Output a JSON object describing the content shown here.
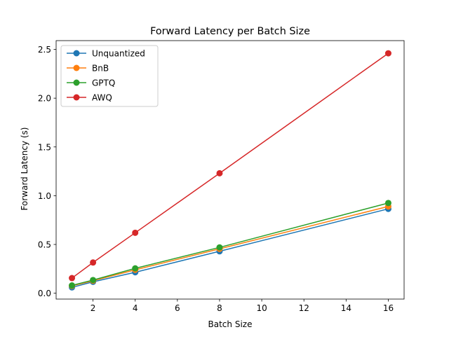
{
  "chart_data": {
    "type": "line",
    "title": "Forward Latency per Batch Size",
    "xlabel": "Batch Size",
    "ylabel": "Forward Latency (s)",
    "x": [
      1,
      2,
      4,
      8,
      16
    ],
    "xlim": [
      0.25,
      16.75
    ],
    "ylim": [
      -0.06,
      2.59
    ],
    "xticks": [
      2,
      4,
      6,
      8,
      10,
      12,
      14,
      16
    ],
    "xtick_labels": [
      "2",
      "4",
      "6",
      "8",
      "10",
      "12",
      "14",
      "16"
    ],
    "yticks": [
      0.0,
      0.5,
      1.0,
      1.5,
      2.0,
      2.5
    ],
    "ytick_labels": [
      "0.0",
      "0.5",
      "1.0",
      "1.5",
      "2.0",
      "2.5"
    ],
    "grid": false,
    "legend_position": "top-left",
    "series": [
      {
        "name": "Unquantized",
        "color": "#1f77b4",
        "values": [
          0.06,
          0.117,
          0.215,
          0.43,
          0.865
        ]
      },
      {
        "name": "BnB",
        "color": "#ff7f0e",
        "values": [
          0.075,
          0.128,
          0.24,
          0.455,
          0.89
        ]
      },
      {
        "name": "GPTQ",
        "color": "#2ca02c",
        "values": [
          0.08,
          0.135,
          0.255,
          0.47,
          0.925
        ]
      },
      {
        "name": "AWQ",
        "color": "#d62728",
        "values": [
          0.155,
          0.315,
          0.62,
          1.23,
          2.46
        ]
      }
    ]
  }
}
